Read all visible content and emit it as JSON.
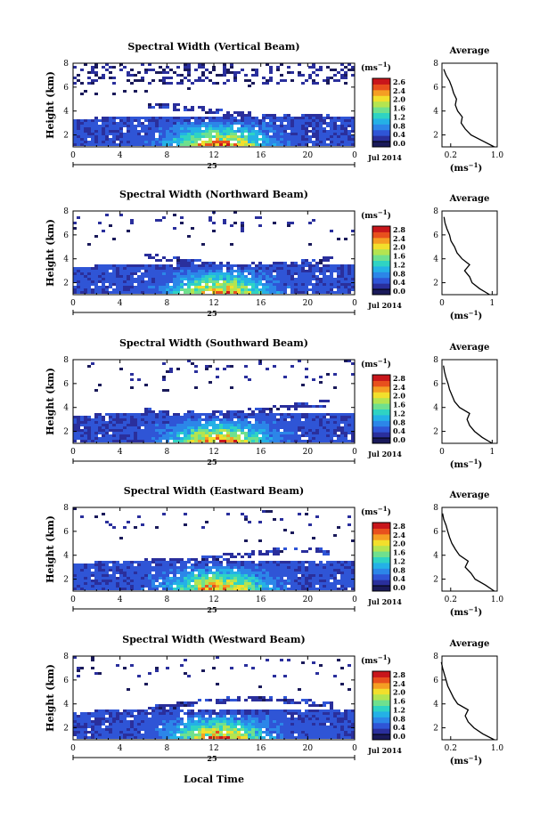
{
  "figure": {
    "bottom_xlabel": "Local Time",
    "date_label": "Jul 2014",
    "day_label": "25",
    "cbar_unit": "(ms",
    "cbar_unit_exp": "−1",
    "avg_title": "Average",
    "avg_unit": "(ms",
    "avg_unit_exp": "−1",
    "colors": [
      "#1a1a5a",
      "#2a2f9c",
      "#2f55d6",
      "#2c86e8",
      "#24b1e6",
      "#2fd3c3",
      "#6fe08e",
      "#b4e450",
      "#f2df2c",
      "#f59e23",
      "#e8501d",
      "#c8161b"
    ]
  },
  "chart_data": [
    {
      "type": "heatmap",
      "title": "Spectral Width (Vertical Beam)",
      "ylabel": "Height (km)",
      "x_ticks": [
        "0",
        "4",
        "8",
        "12",
        "16",
        "20",
        "0"
      ],
      "y_ticks": [
        "2",
        "4",
        "6",
        "8"
      ],
      "xlim": [
        0,
        24
      ],
      "ylim": [
        1,
        8
      ],
      "cbar_ticks": [
        "2.6",
        "2.4",
        "2.0",
        "1.6",
        "1.2",
        "0.8",
        "0.4",
        "0.0"
      ],
      "cbar_range": [
        0.0,
        2.6
      ],
      "profile": {
        "type": "line",
        "x_ticks": [
          "0.2",
          "1.0"
        ],
        "xlim": [
          0.05,
          1.0
        ],
        "y_ticks": [
          "2",
          "4",
          "6",
          "8"
        ],
        "ylim": [
          1,
          8
        ],
        "x": [
          0.95,
          0.75,
          0.55,
          0.45,
          0.38,
          0.4,
          0.32,
          0.28,
          0.3,
          0.25,
          0.22,
          0.18,
          0.12,
          0.08
        ],
        "y": [
          1.0,
          1.5,
          2.0,
          2.5,
          3.0,
          3.5,
          4.0,
          4.5,
          5.0,
          5.5,
          6.0,
          6.5,
          7.0,
          7.5
        ]
      }
    },
    {
      "type": "heatmap",
      "title": "Spectral Width (Northward Beam)",
      "ylabel": "Height (km)",
      "x_ticks": [
        "0",
        "4",
        "8",
        "12",
        "16",
        "20",
        "0"
      ],
      "y_ticks": [
        "2",
        "4",
        "6",
        "8"
      ],
      "xlim": [
        0,
        24
      ],
      "ylim": [
        1,
        8
      ],
      "cbar_ticks": [
        "2.8",
        "2.4",
        "2.0",
        "1.6",
        "1.2",
        "0.8",
        "0.4",
        "0.0"
      ],
      "cbar_range": [
        0.0,
        2.8
      ],
      "profile": {
        "type": "line",
        "x_ticks": [
          "0",
          "1"
        ],
        "xlim": [
          0,
          1.1
        ],
        "y_ticks": [
          "2",
          "4",
          "6",
          "8"
        ],
        "ylim": [
          1,
          8
        ],
        "x": [
          0.95,
          0.75,
          0.6,
          0.55,
          0.45,
          0.55,
          0.4,
          0.3,
          0.25,
          0.18,
          0.15,
          0.1,
          0.06,
          0.04
        ],
        "y": [
          1.0,
          1.5,
          2.0,
          2.5,
          3.0,
          3.5,
          4.0,
          4.5,
          5.0,
          5.5,
          6.0,
          6.5,
          7.0,
          7.5
        ]
      }
    },
    {
      "type": "heatmap",
      "title": "Spectral Width (Southward Beam)",
      "ylabel": "Height (km)",
      "x_ticks": [
        "0",
        "4",
        "8",
        "12",
        "16",
        "20",
        "0"
      ],
      "y_ticks": [
        "2",
        "4",
        "6",
        "8"
      ],
      "xlim": [
        0,
        24
      ],
      "ylim": [
        1,
        8
      ],
      "cbar_ticks": [
        "2.8",
        "2.4",
        "2.0",
        "1.6",
        "1.2",
        "0.8",
        "0.4",
        "0.0"
      ],
      "cbar_range": [
        0.0,
        2.8
      ],
      "profile": {
        "type": "line",
        "x_ticks": [
          "0",
          "1"
        ],
        "xlim": [
          0,
          1.1
        ],
        "y_ticks": [
          "2",
          "4",
          "6",
          "8"
        ],
        "ylim": [
          1,
          8
        ],
        "x": [
          1.0,
          0.8,
          0.65,
          0.55,
          0.5,
          0.55,
          0.35,
          0.25,
          0.2,
          0.15,
          0.12,
          0.08,
          0.05,
          0.03
        ],
        "y": [
          1.0,
          1.5,
          2.0,
          2.5,
          3.0,
          3.5,
          4.0,
          4.5,
          5.0,
          5.5,
          6.0,
          6.5,
          7.0,
          7.5
        ]
      }
    },
    {
      "type": "heatmap",
      "title": "Spectral Width (Eastward Beam)",
      "ylabel": "Height (km)",
      "x_ticks": [
        "0",
        "4",
        "8",
        "12",
        "16",
        "20",
        "0"
      ],
      "y_ticks": [
        "2",
        "4",
        "6",
        "8"
      ],
      "xlim": [
        0,
        24
      ],
      "ylim": [
        1,
        8
      ],
      "cbar_ticks": [
        "2.8",
        "2.4",
        "2.0",
        "1.6",
        "1.2",
        "0.8",
        "0.4",
        "0.0"
      ],
      "cbar_range": [
        0.0,
        2.8
      ],
      "profile": {
        "type": "line",
        "x_ticks": [
          "0.2",
          "1.0"
        ],
        "xlim": [
          0.05,
          1.0
        ],
        "y_ticks": [
          "2",
          "4",
          "6",
          "8"
        ],
        "ylim": [
          1,
          8
        ],
        "x": [
          0.95,
          0.8,
          0.62,
          0.55,
          0.45,
          0.5,
          0.35,
          0.28,
          0.22,
          0.18,
          0.15,
          0.12,
          0.08,
          0.06
        ],
        "y": [
          1.0,
          1.5,
          2.0,
          2.5,
          3.0,
          3.5,
          4.0,
          4.5,
          5.0,
          5.5,
          6.0,
          6.5,
          7.0,
          7.5
        ]
      }
    },
    {
      "type": "heatmap",
      "title": "Spectral Width (Westward Beam)",
      "ylabel": "Height (km)",
      "x_ticks": [
        "0",
        "4",
        "8",
        "12",
        "16",
        "20",
        "0"
      ],
      "y_ticks": [
        "2",
        "4",
        "6",
        "8"
      ],
      "xlim": [
        0,
        24
      ],
      "ylim": [
        1,
        8
      ],
      "cbar_ticks": [
        "2.8",
        "2.4",
        "2.0",
        "1.6",
        "1.2",
        "0.8",
        "0.4",
        "0.0"
      ],
      "cbar_range": [
        0.0,
        2.8
      ],
      "profile": {
        "type": "line",
        "x_ticks": [
          "0.2",
          "1.0"
        ],
        "xlim": [
          0.05,
          1.0
        ],
        "y_ticks": [
          "2",
          "4",
          "6",
          "8"
        ],
        "ylim": [
          1,
          8
        ],
        "x": [
          0.95,
          0.75,
          0.6,
          0.5,
          0.45,
          0.5,
          0.32,
          0.25,
          0.2,
          0.15,
          0.12,
          0.09,
          0.06,
          0.04
        ],
        "y": [
          1.0,
          1.5,
          2.0,
          2.5,
          3.0,
          3.5,
          4.0,
          4.5,
          5.0,
          5.5,
          6.0,
          6.5,
          7.0,
          7.5
        ]
      }
    }
  ]
}
